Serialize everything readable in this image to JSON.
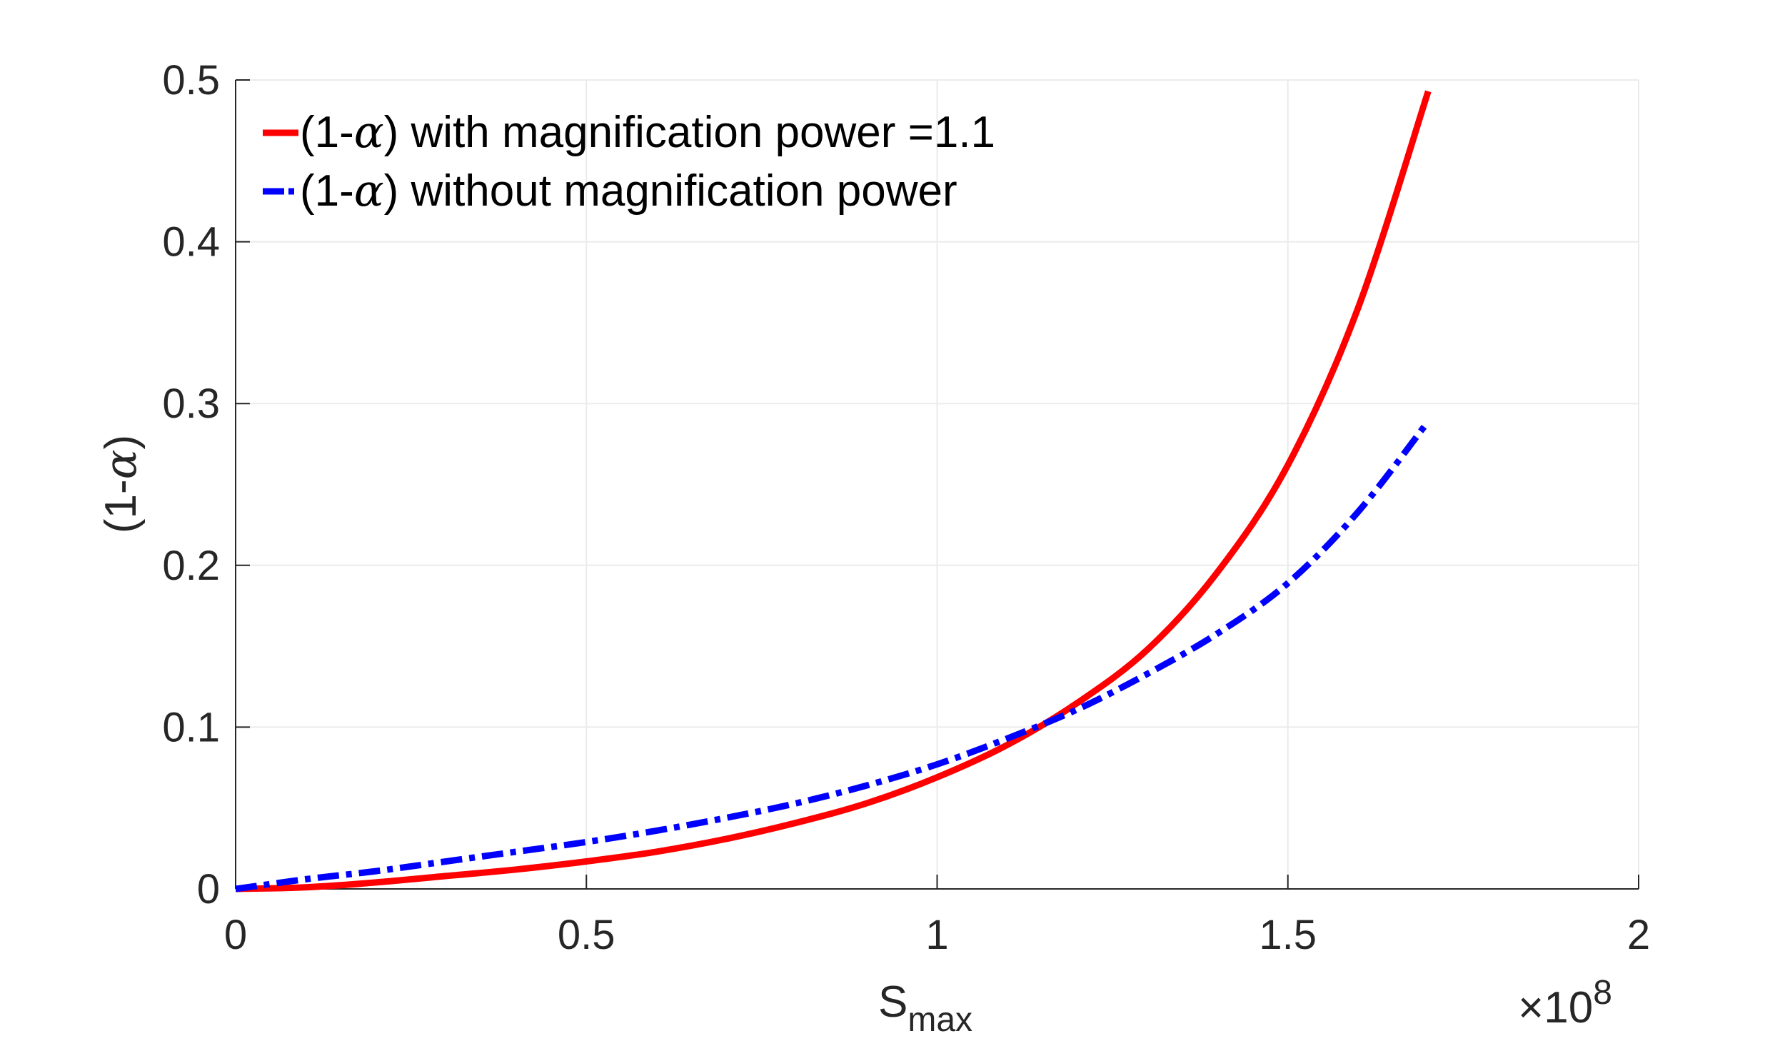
{
  "chart_data": {
    "type": "line",
    "title": "",
    "xlabel": {
      "main": "S",
      "sub": "max"
    },
    "ylabel": {
      "prefix": "(1-",
      "greek": "α",
      "suffix": ")"
    },
    "x_multiplier": {
      "symbol": "×",
      "base": "10",
      "exponent": "8"
    },
    "xlim": [
      0,
      2
    ],
    "ylim": [
      0,
      0.5
    ],
    "xticks": [
      0,
      0.5,
      1,
      1.5,
      2
    ],
    "xtick_labels": [
      "0",
      "0.5",
      "1",
      "1.5",
      "2"
    ],
    "yticks": [
      0,
      0.1,
      0.2,
      0.3,
      0.4,
      0.5
    ],
    "ytick_labels": [
      "0",
      "0.1",
      "0.2",
      "0.3",
      "0.4",
      "0.5"
    ],
    "grid": true,
    "legend_position": "top-left",
    "series": [
      {
        "name": {
          "prefix": "(1-",
          "greek": "α",
          "suffix": ") with magnification power =1.1"
        },
        "color": "#ff0000",
        "style": "solid",
        "x": [
          0,
          0.1,
          0.2,
          0.3,
          0.4,
          0.5,
          0.6,
          0.7,
          0.8,
          0.9,
          1.0,
          1.1,
          1.2,
          1.3,
          1.4,
          1.5,
          1.6,
          1.7
        ],
        "y": [
          0,
          0.001,
          0.004,
          0.008,
          0.012,
          0.017,
          0.023,
          0.031,
          0.041,
          0.053,
          0.069,
          0.089,
          0.115,
          0.148,
          0.196,
          0.262,
          0.359,
          0.493
        ]
      },
      {
        "name": {
          "prefix": "(1-",
          "greek": "α",
          "suffix": ") without magnification power"
        },
        "color": "#0000ff",
        "style": "dashdot",
        "x": [
          0,
          0.1,
          0.2,
          0.3,
          0.4,
          0.5,
          0.6,
          0.7,
          0.8,
          0.9,
          1.0,
          1.1,
          1.2,
          1.3,
          1.4,
          1.5,
          1.6,
          1.7
        ],
        "y": [
          0,
          0.006,
          0.011,
          0.017,
          0.023,
          0.029,
          0.036,
          0.044,
          0.053,
          0.064,
          0.077,
          0.093,
          0.111,
          0.133,
          0.158,
          0.189,
          0.233,
          0.289
        ]
      }
    ]
  }
}
